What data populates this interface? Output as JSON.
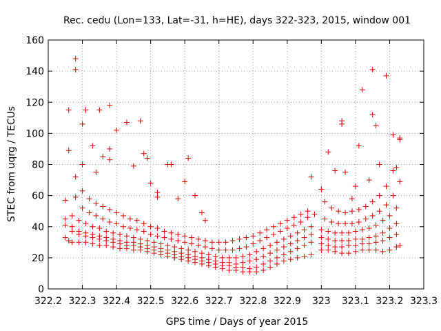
{
  "chart_data": {
    "type": "scatter",
    "title": "Rec. cedu (Lon=133, Lat=-31, h=HE), days 322-323, 2015, window 001",
    "xlabel": "GPS time / Days of year 2015",
    "ylabel": "STEC from uqrg / TECUs",
    "xlim": [
      322.2,
      323.3
    ],
    "ylim": [
      0,
      160
    ],
    "x_ticks": [
      "322.2",
      "322.3",
      "322.4",
      "322.5",
      "322.6",
      "322.7",
      "322.8",
      "322.9",
      "323",
      "323.1",
      "323.2",
      "323.3"
    ],
    "y_ticks": [
      "0",
      "20",
      "40",
      "60",
      "80",
      "100",
      "120",
      "140",
      "160"
    ],
    "grid": true,
    "marker": "+",
    "color": "#d40000",
    "points": [
      [
        322.25,
        33
      ],
      [
        322.26,
        31
      ],
      [
        322.27,
        30
      ],
      [
        322.29,
        30
      ],
      [
        322.31,
        30
      ],
      [
        322.33,
        29
      ],
      [
        322.35,
        28
      ],
      [
        322.37,
        28
      ],
      [
        322.39,
        27
      ],
      [
        322.41,
        26
      ],
      [
        322.43,
        26
      ],
      [
        322.45,
        25
      ],
      [
        322.47,
        25
      ],
      [
        322.49,
        24
      ],
      [
        322.51,
        23
      ],
      [
        322.53,
        22
      ],
      [
        322.55,
        21
      ],
      [
        322.57,
        20
      ],
      [
        322.59,
        19
      ],
      [
        322.61,
        18
      ],
      [
        322.63,
        17
      ],
      [
        322.65,
        16
      ],
      [
        322.67,
        15
      ],
      [
        322.69,
        14
      ],
      [
        322.71,
        13
      ],
      [
        322.73,
        12
      ],
      [
        322.75,
        12
      ],
      [
        322.77,
        11
      ],
      [
        322.79,
        11
      ],
      [
        322.81,
        11
      ],
      [
        322.83,
        12
      ],
      [
        322.85,
        14
      ],
      [
        322.87,
        16
      ],
      [
        322.89,
        18
      ],
      [
        322.91,
        19
      ],
      [
        322.93,
        20
      ],
      [
        322.95,
        21
      ],
      [
        322.97,
        22
      ],
      [
        323.0,
        25
      ],
      [
        323.02,
        25
      ],
      [
        323.04,
        24
      ],
      [
        323.06,
        23
      ],
      [
        323.08,
        23
      ],
      [
        323.1,
        24
      ],
      [
        323.12,
        25
      ],
      [
        323.14,
        25
      ],
      [
        323.16,
        25
      ],
      [
        323.18,
        24
      ],
      [
        323.2,
        25
      ],
      [
        323.22,
        27
      ],
      [
        323.23,
        28
      ],
      [
        322.25,
        41
      ],
      [
        322.27,
        37
      ],
      [
        322.29,
        35
      ],
      [
        322.31,
        34
      ],
      [
        322.33,
        33
      ],
      [
        322.35,
        32
      ],
      [
        322.37,
        31
      ],
      [
        322.39,
        30
      ],
      [
        322.41,
        29
      ],
      [
        322.43,
        28
      ],
      [
        322.45,
        28
      ],
      [
        322.47,
        27
      ],
      [
        322.49,
        26
      ],
      [
        322.51,
        25
      ],
      [
        322.53,
        24
      ],
      [
        322.55,
        23
      ],
      [
        322.57,
        22
      ],
      [
        322.59,
        21
      ],
      [
        322.61,
        20
      ],
      [
        322.63,
        19
      ],
      [
        322.65,
        18
      ],
      [
        322.67,
        17
      ],
      [
        322.69,
        16
      ],
      [
        322.71,
        15
      ],
      [
        322.73,
        15
      ],
      [
        322.75,
        14
      ],
      [
        322.77,
        14
      ],
      [
        322.79,
        13
      ],
      [
        322.81,
        14
      ],
      [
        322.83,
        16
      ],
      [
        322.85,
        18
      ],
      [
        322.87,
        20
      ],
      [
        322.89,
        22
      ],
      [
        322.91,
        24
      ],
      [
        322.93,
        26
      ],
      [
        322.95,
        28
      ],
      [
        322.97,
        30
      ],
      [
        323.0,
        29
      ],
      [
        323.02,
        28
      ],
      [
        323.04,
        27
      ],
      [
        323.06,
        27
      ],
      [
        323.08,
        28
      ],
      [
        323.1,
        28
      ],
      [
        323.12,
        29
      ],
      [
        323.14,
        29
      ],
      [
        323.16,
        30
      ],
      [
        323.18,
        31
      ],
      [
        323.2,
        33
      ],
      [
        323.22,
        35
      ],
      [
        322.25,
        45
      ],
      [
        322.27,
        40
      ],
      [
        322.29,
        37
      ],
      [
        322.31,
        36
      ],
      [
        322.33,
        35
      ],
      [
        322.35,
        34
      ],
      [
        322.37,
        33
      ],
      [
        322.39,
        32
      ],
      [
        322.41,
        31
      ],
      [
        322.43,
        30
      ],
      [
        322.45,
        30
      ],
      [
        322.47,
        29
      ],
      [
        322.49,
        28
      ],
      [
        322.51,
        27
      ],
      [
        322.53,
        26
      ],
      [
        322.55,
        25
      ],
      [
        322.57,
        24
      ],
      [
        322.59,
        23
      ],
      [
        322.61,
        22
      ],
      [
        322.63,
        21
      ],
      [
        322.65,
        20
      ],
      [
        322.67,
        19
      ],
      [
        322.69,
        18
      ],
      [
        322.71,
        17
      ],
      [
        322.73,
        17
      ],
      [
        322.75,
        16
      ],
      [
        322.77,
        17
      ],
      [
        322.79,
        18
      ],
      [
        322.81,
        19
      ],
      [
        322.83,
        21
      ],
      [
        322.85,
        23
      ],
      [
        322.87,
        25
      ],
      [
        322.89,
        27
      ],
      [
        322.91,
        29
      ],
      [
        322.93,
        31
      ],
      [
        322.95,
        33
      ],
      [
        322.97,
        35
      ],
      [
        323.0,
        33
      ],
      [
        323.02,
        32
      ],
      [
        323.04,
        31
      ],
      [
        323.06,
        31
      ],
      [
        323.08,
        31
      ],
      [
        323.1,
        32
      ],
      [
        323.12,
        32
      ],
      [
        323.14,
        33
      ],
      [
        323.16,
        34
      ],
      [
        323.18,
        36
      ],
      [
        323.2,
        39
      ],
      [
        323.22,
        42
      ],
      [
        322.25,
        57
      ],
      [
        322.27,
        47
      ],
      [
        322.29,
        44
      ],
      [
        322.31,
        42
      ],
      [
        322.33,
        40
      ],
      [
        322.35,
        39
      ],
      [
        322.37,
        37
      ],
      [
        322.39,
        36
      ],
      [
        322.41,
        35
      ],
      [
        322.43,
        34
      ],
      [
        322.45,
        33
      ],
      [
        322.47,
        32
      ],
      [
        322.49,
        31
      ],
      [
        322.51,
        30
      ],
      [
        322.53,
        29
      ],
      [
        322.55,
        28
      ],
      [
        322.57,
        27
      ],
      [
        322.59,
        26
      ],
      [
        322.61,
        25
      ],
      [
        322.63,
        24
      ],
      [
        322.65,
        23
      ],
      [
        322.67,
        22
      ],
      [
        322.69,
        21
      ],
      [
        322.71,
        20
      ],
      [
        322.73,
        20
      ],
      [
        322.75,
        20
      ],
      [
        322.77,
        21
      ],
      [
        322.79,
        22
      ],
      [
        322.81,
        24
      ],
      [
        322.83,
        26
      ],
      [
        322.85,
        28
      ],
      [
        322.87,
        30
      ],
      [
        322.89,
        32
      ],
      [
        322.91,
        34
      ],
      [
        322.93,
        36
      ],
      [
        322.95,
        38
      ],
      [
        322.97,
        40
      ],
      [
        323.0,
        38
      ],
      [
        323.02,
        37
      ],
      [
        323.04,
        36
      ],
      [
        323.06,
        36
      ],
      [
        323.08,
        36
      ],
      [
        323.1,
        37
      ],
      [
        323.12,
        38
      ],
      [
        323.14,
        39
      ],
      [
        323.16,
        41
      ],
      [
        323.18,
        44
      ],
      [
        323.2,
        47
      ],
      [
        323.22,
        52
      ],
      [
        322.26,
        89
      ],
      [
        322.28,
        59
      ],
      [
        322.3,
        52
      ],
      [
        322.32,
        49
      ],
      [
        322.34,
        47
      ],
      [
        322.36,
        45
      ],
      [
        322.38,
        43
      ],
      [
        322.4,
        42
      ],
      [
        322.42,
        40
      ],
      [
        322.44,
        39
      ],
      [
        322.46,
        38
      ],
      [
        322.48,
        37
      ],
      [
        322.5,
        35
      ],
      [
        322.52,
        34
      ],
      [
        322.54,
        33
      ],
      [
        322.56,
        32
      ],
      [
        322.58,
        31
      ],
      [
        322.6,
        30
      ],
      [
        322.62,
        29
      ],
      [
        322.64,
        28
      ],
      [
        322.66,
        27
      ],
      [
        322.68,
        26
      ],
      [
        322.7,
        25
      ],
      [
        322.72,
        25
      ],
      [
        322.74,
        25
      ],
      [
        322.76,
        26
      ],
      [
        322.78,
        27
      ],
      [
        322.8,
        29
      ],
      [
        322.82,
        31
      ],
      [
        322.84,
        33
      ],
      [
        322.86,
        35
      ],
      [
        322.88,
        37
      ],
      [
        322.9,
        39
      ],
      [
        322.92,
        41
      ],
      [
        322.94,
        43
      ],
      [
        322.96,
        46
      ],
      [
        322.98,
        48
      ],
      [
        323.01,
        45
      ],
      [
        323.03,
        43
      ],
      [
        323.05,
        42
      ],
      [
        323.07,
        42
      ],
      [
        323.09,
        42
      ],
      [
        323.11,
        43
      ],
      [
        323.13,
        45
      ],
      [
        323.15,
        47
      ],
      [
        323.17,
        50
      ],
      [
        323.19,
        54
      ],
      [
        323.21,
        60
      ],
      [
        323.23,
        69
      ],
      [
        322.26,
        115
      ],
      [
        322.28,
        72
      ],
      [
        322.3,
        63
      ],
      [
        322.32,
        58
      ],
      [
        322.34,
        55
      ],
      [
        322.36,
        53
      ],
      [
        322.38,
        51
      ],
      [
        322.4,
        49
      ],
      [
        322.42,
        47
      ],
      [
        322.44,
        45
      ],
      [
        322.46,
        44
      ],
      [
        322.48,
        42
      ],
      [
        322.5,
        40
      ],
      [
        322.52,
        39
      ],
      [
        322.54,
        37
      ],
      [
        322.56,
        36
      ],
      [
        322.58,
        35
      ],
      [
        322.6,
        34
      ],
      [
        322.62,
        33
      ],
      [
        322.64,
        32
      ],
      [
        322.66,
        31
      ],
      [
        322.68,
        30
      ],
      [
        322.7,
        30
      ],
      [
        322.72,
        30
      ],
      [
        322.74,
        31
      ],
      [
        322.76,
        32
      ],
      [
        322.78,
        33
      ],
      [
        322.8,
        34
      ],
      [
        322.82,
        36
      ],
      [
        322.84,
        38
      ],
      [
        322.86,
        40
      ],
      [
        322.88,
        42
      ],
      [
        322.9,
        44
      ],
      [
        322.92,
        46
      ],
      [
        322.94,
        48
      ],
      [
        322.96,
        50
      ],
      [
        323.01,
        56
      ],
      [
        323.03,
        52
      ],
      [
        323.05,
        50
      ],
      [
        323.07,
        49
      ],
      [
        323.09,
        50
      ],
      [
        323.11,
        51
      ],
      [
        323.13,
        53
      ],
      [
        323.15,
        56
      ],
      [
        323.17,
        60
      ],
      [
        323.19,
        66
      ],
      [
        323.21,
        76
      ],
      [
        323.23,
        96
      ],
      [
        322.28,
        148
      ],
      [
        322.28,
        141
      ],
      [
        322.3,
        106
      ],
      [
        322.31,
        115
      ],
      [
        322.33,
        92
      ],
      [
        322.35,
        115
      ],
      [
        322.36,
        85
      ],
      [
        322.38,
        118
      ],
      [
        322.38,
        90
      ],
      [
        322.38,
        83
      ],
      [
        322.4,
        102
      ],
      [
        322.43,
        107
      ],
      [
        322.45,
        79
      ],
      [
        322.47,
        108
      ],
      [
        322.48,
        87
      ],
      [
        322.49,
        84
      ],
      [
        322.5,
        68
      ],
      [
        322.52,
        62
      ],
      [
        322.55,
        80
      ],
      [
        322.56,
        80
      ],
      [
        322.6,
        69
      ],
      [
        322.61,
        84
      ],
      [
        322.63,
        60
      ],
      [
        322.65,
        49
      ],
      [
        322.97,
        72
      ],
      [
        323.02,
        88
      ],
      [
        323.04,
        76
      ],
      [
        323.06,
        108
      ],
      [
        323.06,
        106
      ],
      [
        323.07,
        75
      ],
      [
        323.1,
        66
      ],
      [
        323.11,
        92
      ],
      [
        323.12,
        128
      ],
      [
        323.15,
        141
      ],
      [
        323.15,
        112
      ],
      [
        323.16,
        105
      ],
      [
        323.17,
        80
      ],
      [
        323.19,
        137
      ],
      [
        323.21,
        99
      ],
      [
        323.22,
        78
      ],
      [
        323.23,
        97
      ],
      [
        322.3,
        80
      ],
      [
        322.34,
        75
      ],
      [
        322.52,
        59
      ],
      [
        322.58,
        58
      ],
      [
        322.66,
        44
      ],
      [
        323.0,
        64
      ],
      [
        323.09,
        58
      ],
      [
        323.14,
        70
      ]
    ]
  }
}
